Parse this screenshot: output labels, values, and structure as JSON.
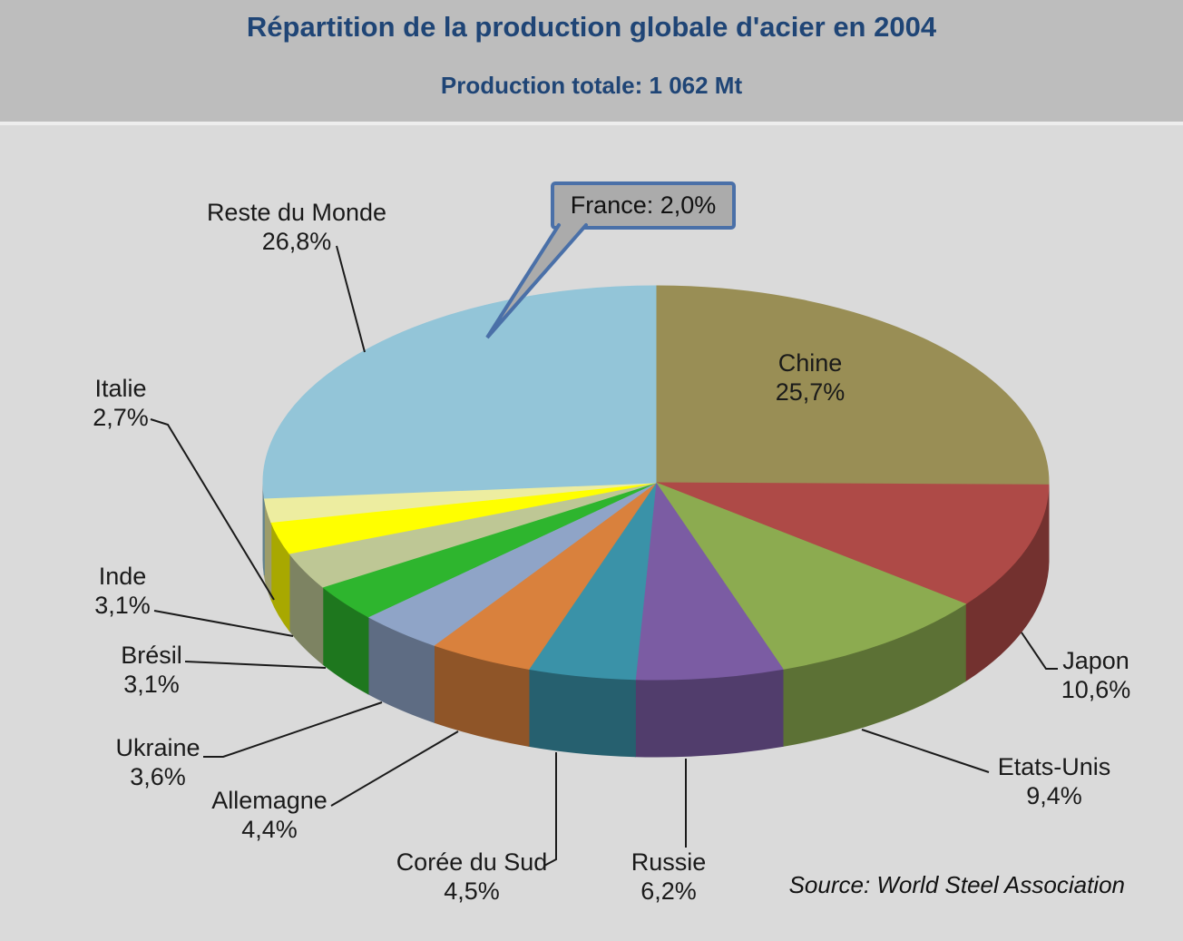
{
  "header": {
    "title": "Répartition de la production  globale d'acier en 2004",
    "subtitle": "Production totale:  1 062 Mt"
  },
  "callout": {
    "text": "France: 2,0%"
  },
  "source_note": "Source: World Steel Association",
  "colors": {
    "body_bg": "#DADADA",
    "header_bg": "#BDBDBD",
    "title_text": "#1F4576",
    "callout_fill": "#ABABAB",
    "callout_border": "#4A70A8",
    "label_text": "#1A1A1A",
    "leader_line": "#1A1A1A"
  },
  "chart_data": {
    "type": "pie",
    "style": "pie-3d",
    "title": "Répartition de la production  globale d'acier en 2004",
    "subtitle": "Production totale:  1 062 Mt",
    "total": "1 062 Mt",
    "source": "Source: World Steel Association",
    "unit": "%",
    "start_angle_deg": 0,
    "direction": "clockwise",
    "legend": "none",
    "slices": [
      {
        "label": "Chine",
        "value": 25.7,
        "display": "25,7%",
        "color": "#998E55"
      },
      {
        "label": "Japon",
        "value": 10.6,
        "display": "10,6%",
        "color": "#AE4A47"
      },
      {
        "label": "Etats-Unis",
        "value": 9.4,
        "display": "9,4%",
        "color": "#8CAB50"
      },
      {
        "label": "Russie",
        "value": 6.2,
        "display": "6,2%",
        "color": "#7B5CA3"
      },
      {
        "label": "Corée du Sud",
        "value": 4.5,
        "display": "4,5%",
        "color": "#3A92A8"
      },
      {
        "label": "Allemagne",
        "value": 4.4,
        "display": "4,4%",
        "color": "#D9813D"
      },
      {
        "label": "Ukraine",
        "value": 3.6,
        "display": "3,6%",
        "color": "#8FA4C7"
      },
      {
        "label": "Brésil",
        "value": 3.1,
        "display": "3,1%",
        "color": "#2EB52E"
      },
      {
        "label": "Inde",
        "value": 3.1,
        "display": "3,1%",
        "color": "#BEC795"
      },
      {
        "label": "Italie",
        "value": 2.7,
        "display": "2,7%",
        "color": "#FFFF00"
      },
      {
        "label": "France",
        "value": 2.0,
        "display": "2,0%",
        "color": "#EDEDA0",
        "callout": true
      },
      {
        "label": "Reste du Monde",
        "value": 26.8,
        "display": "26,8%",
        "color": "#93C5D8"
      }
    ]
  }
}
